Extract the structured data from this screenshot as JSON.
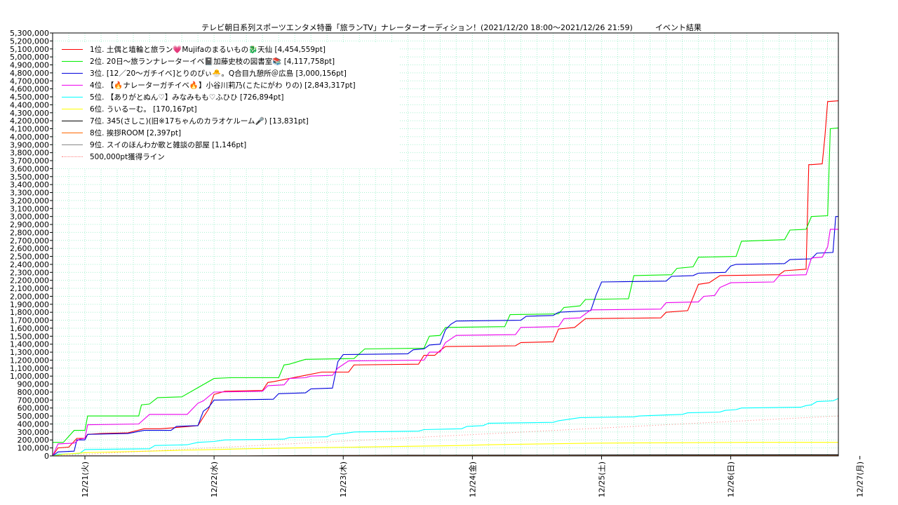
{
  "title": {
    "main": "テレビ朝日系列スポーツエンタメ特番「旅ランTV」ナレーターオーディション！(2021/12/20 18:00〜2021/12/26 21:59)",
    "sub": "イベント結果"
  },
  "chart_data": {
    "type": "line",
    "title": "テレビ朝日系列スポーツエンタメ特番「旅ランTV」ナレーターオーディション！(2021/12/20 18:00〜2021/12/26 21:59) イベント結果",
    "xlabel": "",
    "ylabel": "",
    "ylim": [
      0,
      5300000
    ],
    "xlim": [
      -6,
      140
    ],
    "x_unit": "hours since 2021/12/21 00:00",
    "x_ticks": [
      "12/21(火)",
      "12/22(水)",
      "12/23(木)",
      "12/24(金)",
      "12/25(土)",
      "12/26(日)",
      "12/27(月)"
    ],
    "y_tick_step": 100000,
    "grid": true,
    "legend_position": "top-left",
    "series": [
      {
        "name": "1位. 土偶と埴輪と旅ラン💗Mujifaのまるいもの🐉天仙 [4,454,559pt]",
        "color": "#ff0000",
        "points": [
          [
            -6,
            0
          ],
          [
            -5,
            100000
          ],
          [
            -3,
            110000
          ],
          [
            -1.5,
            220000
          ],
          [
            0,
            220000
          ],
          [
            0.5,
            270000
          ],
          [
            3,
            280000
          ],
          [
            8,
            290000
          ],
          [
            11,
            340000
          ],
          [
            14,
            340000
          ],
          [
            16,
            350000
          ],
          [
            21,
            380000
          ],
          [
            23,
            590000
          ],
          [
            24,
            770000
          ],
          [
            26,
            810000
          ],
          [
            33,
            820000
          ],
          [
            34,
            920000
          ],
          [
            35,
            930000
          ],
          [
            41,
            1010000
          ],
          [
            44,
            1050000
          ],
          [
            49,
            1050000
          ],
          [
            50,
            1140000
          ],
          [
            62,
            1150000
          ],
          [
            63,
            1260000
          ],
          [
            65,
            1260000
          ],
          [
            66,
            1320000
          ],
          [
            67,
            1370000
          ],
          [
            80,
            1380000
          ],
          [
            81,
            1420000
          ],
          [
            87,
            1430000
          ],
          [
            88,
            1590000
          ],
          [
            91,
            1610000
          ],
          [
            93,
            1720000
          ],
          [
            107,
            1730000
          ],
          [
            108,
            1800000
          ],
          [
            112,
            1820000
          ],
          [
            114,
            2150000
          ],
          [
            116,
            2170000
          ],
          [
            118,
            2260000
          ],
          [
            129,
            2270000
          ],
          [
            130,
            2320000
          ],
          [
            134,
            2340000
          ],
          [
            134.5,
            3650000
          ],
          [
            135,
            3650000
          ],
          [
            137,
            3660000
          ],
          [
            137.5,
            4000000
          ],
          [
            138,
            4440000
          ],
          [
            140,
            4450000
          ]
        ]
      },
      {
        "name": "2位. 20日〜旅ランナレーターイベ📓加藤史枝の図書室📚 [4,117,758pt]",
        "color": "#00ee00",
        "points": [
          [
            -6,
            170000
          ],
          [
            -4,
            170000
          ],
          [
            -2,
            320000
          ],
          [
            0,
            320000
          ],
          [
            0.5,
            500000
          ],
          [
            10,
            500000
          ],
          [
            10.5,
            640000
          ],
          [
            12,
            650000
          ],
          [
            13.5,
            730000
          ],
          [
            18,
            740000
          ],
          [
            24,
            970000
          ],
          [
            27,
            980000
          ],
          [
            36,
            980000
          ],
          [
            37,
            1140000
          ],
          [
            38,
            1150000
          ],
          [
            41,
            1210000
          ],
          [
            50,
            1220000
          ],
          [
            52,
            1340000
          ],
          [
            63,
            1350000
          ],
          [
            64,
            1500000
          ],
          [
            66,
            1510000
          ],
          [
            67,
            1610000
          ],
          [
            78,
            1620000
          ],
          [
            79,
            1770000
          ],
          [
            88,
            1780000
          ],
          [
            89,
            1860000
          ],
          [
            92,
            1880000
          ],
          [
            93,
            1960000
          ],
          [
            101,
            1970000
          ],
          [
            102,
            2260000
          ],
          [
            109,
            2270000
          ],
          [
            110,
            2350000
          ],
          [
            113,
            2370000
          ],
          [
            114,
            2490000
          ],
          [
            121,
            2500000
          ],
          [
            122,
            2690000
          ],
          [
            130,
            2710000
          ],
          [
            131,
            2830000
          ],
          [
            134,
            2840000
          ],
          [
            135,
            3000000
          ],
          [
            138,
            3010000
          ],
          [
            138.5,
            4100000
          ],
          [
            140,
            4110000
          ]
        ]
      },
      {
        "name": "3位. [12／20〜ガチイベ]とりのぴぃ🐣。Q合目九憩所＠広島 [3,000,156pt]",
        "color": "#0000dd",
        "points": [
          [
            -6,
            0
          ],
          [
            -5,
            50000
          ],
          [
            -2,
            60000
          ],
          [
            -1.5,
            200000
          ],
          [
            0,
            200000
          ],
          [
            0.5,
            270000
          ],
          [
            8,
            280000
          ],
          [
            11,
            320000
          ],
          [
            16,
            320000
          ],
          [
            17,
            370000
          ],
          [
            21,
            380000
          ],
          [
            22,
            560000
          ],
          [
            23,
            610000
          ],
          [
            24,
            700000
          ],
          [
            35,
            710000
          ],
          [
            36,
            780000
          ],
          [
            41,
            790000
          ],
          [
            42,
            840000
          ],
          [
            46,
            850000
          ],
          [
            47,
            1180000
          ],
          [
            48,
            1270000
          ],
          [
            60,
            1280000
          ],
          [
            61,
            1330000
          ],
          [
            63,
            1340000
          ],
          [
            64,
            1390000
          ],
          [
            66,
            1400000
          ],
          [
            67,
            1580000
          ],
          [
            68,
            1650000
          ],
          [
            69,
            1690000
          ],
          [
            81,
            1700000
          ],
          [
            82,
            1750000
          ],
          [
            87,
            1760000
          ],
          [
            88,
            1800000
          ],
          [
            94,
            1820000
          ],
          [
            95,
            2020000
          ],
          [
            96,
            2180000
          ],
          [
            108,
            2190000
          ],
          [
            109,
            2250000
          ],
          [
            113,
            2260000
          ],
          [
            114,
            2290000
          ],
          [
            119,
            2300000
          ],
          [
            120,
            2380000
          ],
          [
            121,
            2400000
          ],
          [
            130,
            2410000
          ],
          [
            131,
            2460000
          ],
          [
            135,
            2470000
          ],
          [
            136,
            2540000
          ],
          [
            139,
            2550000
          ],
          [
            139.5,
            3000000
          ],
          [
            140,
            3000000
          ]
        ]
      },
      {
        "name": "4位. 【🔥ナレーターガチイベ🔥】小谷川莉乃(こたにがわ りの) [2,843,317pt]",
        "color": "#ee00ee",
        "points": [
          [
            -6,
            0
          ],
          [
            -5,
            150000
          ],
          [
            -2,
            160000
          ],
          [
            -1,
            210000
          ],
          [
            0,
            220000
          ],
          [
            0.5,
            390000
          ],
          [
            10,
            400000
          ],
          [
            12,
            520000
          ],
          [
            19,
            520000
          ],
          [
            21,
            660000
          ],
          [
            22,
            690000
          ],
          [
            24,
            800000
          ],
          [
            33,
            810000
          ],
          [
            34,
            880000
          ],
          [
            37,
            890000
          ],
          [
            38,
            970000
          ],
          [
            41,
            980000
          ],
          [
            42,
            1000000
          ],
          [
            46,
            1010000
          ],
          [
            47,
            1100000
          ],
          [
            49,
            1190000
          ],
          [
            63,
            1200000
          ],
          [
            64,
            1300000
          ],
          [
            66,
            1300000
          ],
          [
            67,
            1420000
          ],
          [
            69,
            1510000
          ],
          [
            80,
            1520000
          ],
          [
            81,
            1610000
          ],
          [
            88,
            1620000
          ],
          [
            89,
            1720000
          ],
          [
            92,
            1730000
          ],
          [
            94,
            1830000
          ],
          [
            107,
            1840000
          ],
          [
            108,
            1920000
          ],
          [
            114,
            1930000
          ],
          [
            115,
            2000000
          ],
          [
            117,
            2010000
          ],
          [
            118,
            2110000
          ],
          [
            120,
            2170000
          ],
          [
            128,
            2180000
          ],
          [
            129,
            2260000
          ],
          [
            134,
            2270000
          ],
          [
            135,
            2480000
          ],
          [
            137,
            2490000
          ],
          [
            138,
            2620000
          ],
          [
            138.5,
            2840000
          ],
          [
            140,
            2840000
          ]
        ]
      },
      {
        "name": "5位. 【ありがとぬん♡】みなみもも♡ふひひ [726,894pt]",
        "color": "#00ffff",
        "points": [
          [
            -6,
            0
          ],
          [
            -5,
            20000
          ],
          [
            -1,
            30000
          ],
          [
            0,
            80000
          ],
          [
            12,
            90000
          ],
          [
            13,
            130000
          ],
          [
            19,
            140000
          ],
          [
            21,
            170000
          ],
          [
            24,
            180000
          ],
          [
            26,
            200000
          ],
          [
            37,
            210000
          ],
          [
            38,
            230000
          ],
          [
            45,
            240000
          ],
          [
            46,
            270000
          ],
          [
            48,
            280000
          ],
          [
            50,
            300000
          ],
          [
            62,
            310000
          ],
          [
            63,
            330000
          ],
          [
            70,
            340000
          ],
          [
            71,
            370000
          ],
          [
            74,
            380000
          ],
          [
            75,
            410000
          ],
          [
            87,
            420000
          ],
          [
            88,
            440000
          ],
          [
            90,
            460000
          ],
          [
            92,
            480000
          ],
          [
            102,
            490000
          ],
          [
            103,
            500000
          ],
          [
            111,
            520000
          ],
          [
            112,
            540000
          ],
          [
            118,
            550000
          ],
          [
            119,
            570000
          ],
          [
            121,
            580000
          ],
          [
            122,
            600000
          ],
          [
            133,
            610000
          ],
          [
            134,
            630000
          ],
          [
            135,
            640000
          ],
          [
            136,
            680000
          ],
          [
            139,
            690000
          ],
          [
            140,
            720000
          ]
        ]
      },
      {
        "name": "6位. ういるーむ。 [170,167pt]",
        "color": "#ffff00",
        "points": [
          [
            -6,
            0
          ],
          [
            -4,
            20000
          ],
          [
            0,
            40000
          ],
          [
            6,
            50000
          ],
          [
            12,
            60000
          ],
          [
            18,
            70000
          ],
          [
            24,
            80000
          ],
          [
            30,
            90000
          ],
          [
            40,
            100000
          ],
          [
            50,
            110000
          ],
          [
            60,
            120000
          ],
          [
            70,
            130000
          ],
          [
            75,
            140000
          ],
          [
            85,
            150000
          ],
          [
            95,
            160000
          ],
          [
            110,
            165000
          ],
          [
            125,
            170000
          ],
          [
            140,
            170000
          ]
        ]
      },
      {
        "name": "7位. 345(さしこ)(旧※17ちゃんのカラオケルーム🎤) [13,831pt]",
        "color": "#000000",
        "points": [
          [
            -6,
            0
          ],
          [
            30,
            0
          ],
          [
            40,
            5000
          ],
          [
            60,
            8000
          ],
          [
            80,
            10000
          ],
          [
            110,
            12000
          ],
          [
            140,
            13800
          ]
        ]
      },
      {
        "name": "8位. 挨拶ROOM [2,397pt]",
        "color": "#ff6600",
        "points": [
          [
            -6,
            0
          ],
          [
            20,
            1000
          ],
          [
            60,
            2000
          ],
          [
            140,
            2400
          ]
        ]
      },
      {
        "name": "9位. スイのほんわか歌と雑談の部屋 [1,146pt]",
        "color": "#888888",
        "points": [
          [
            -6,
            0
          ],
          [
            40,
            500
          ],
          [
            140,
            1100
          ]
        ]
      },
      {
        "name": "500,000pt獲得ライン",
        "color": "#ff8080",
        "dotted": true,
        "points": [
          [
            -6,
            0
          ],
          [
            140,
            500000
          ]
        ]
      }
    ]
  }
}
